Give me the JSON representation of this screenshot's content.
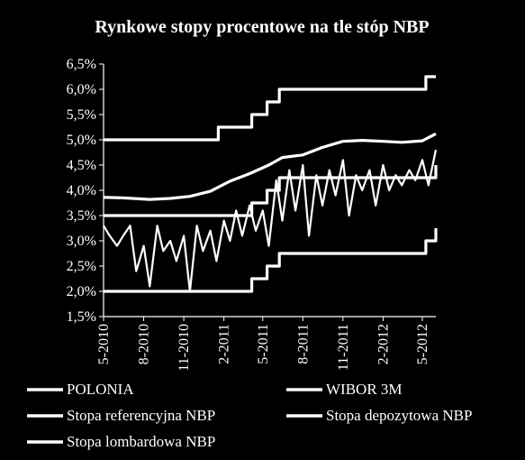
{
  "chart_data": {
    "type": "line",
    "title": "Rynkowe stopy procentowe na tle stóp NBP",
    "xlabel": "",
    "ylabel": "",
    "ylim": [
      0.015,
      0.065
    ],
    "y_ticks": [
      "1,5%",
      "2,0%",
      "2,5%",
      "3,0%",
      "3,5%",
      "4,0%",
      "4,5%",
      "5,0%",
      "5,5%",
      "6,0%",
      "6,5%"
    ],
    "x_range": [
      "2010-05-01",
      "2012-06-01"
    ],
    "x_ticks": [
      {
        "label": "5-2010",
        "date": "2010-05-01"
      },
      {
        "label": "8-2010",
        "date": "2010-08-01"
      },
      {
        "label": "11-2010",
        "date": "2010-11-01"
      },
      {
        "label": "2-2011",
        "date": "2011-02-01"
      },
      {
        "label": "5-2011",
        "date": "2011-05-01"
      },
      {
        "label": "8-2011",
        "date": "2011-08-01"
      },
      {
        "label": "11-2011",
        "date": "2011-11-01"
      },
      {
        "label": "2-2012",
        "date": "2012-02-01"
      },
      {
        "label": "5-2012",
        "date": "2012-05-01"
      }
    ],
    "grid": false,
    "legend_position": "bottom",
    "series": [
      {
        "name": "POLONIA",
        "color": "#ffffff",
        "x": [
          "2010-05-01",
          "2010-05-15",
          "2010-06-01",
          "2010-06-15",
          "2010-07-01",
          "2010-07-15",
          "2010-08-01",
          "2010-08-15",
          "2010-09-01",
          "2010-09-15",
          "2010-10-01",
          "2010-10-15",
          "2010-11-01",
          "2010-11-15",
          "2010-12-01",
          "2010-12-15",
          "2011-01-01",
          "2011-01-15",
          "2011-02-01",
          "2011-02-15",
          "2011-03-01",
          "2011-03-15",
          "2011-04-01",
          "2011-04-15",
          "2011-05-01",
          "2011-05-15",
          "2011-06-01",
          "2011-06-15",
          "2011-07-01",
          "2011-07-15",
          "2011-08-01",
          "2011-08-15",
          "2011-09-01",
          "2011-09-15",
          "2011-10-01",
          "2011-10-15",
          "2011-11-01",
          "2011-11-15",
          "2011-12-01",
          "2011-12-15",
          "2012-01-01",
          "2012-01-15",
          "2012-02-01",
          "2012-02-15",
          "2012-03-01",
          "2012-03-15",
          "2012-04-01",
          "2012-04-15",
          "2012-05-01",
          "2012-05-15",
          "2012-06-01"
        ],
        "values": [
          0.033,
          0.031,
          0.029,
          0.031,
          0.033,
          0.024,
          0.029,
          0.021,
          0.033,
          0.028,
          0.03,
          0.026,
          0.031,
          0.02,
          0.033,
          0.028,
          0.032,
          0.026,
          0.034,
          0.03,
          0.036,
          0.031,
          0.037,
          0.032,
          0.036,
          0.029,
          0.042,
          0.034,
          0.044,
          0.036,
          0.045,
          0.031,
          0.043,
          0.037,
          0.044,
          0.039,
          0.046,
          0.035,
          0.043,
          0.04,
          0.044,
          0.037,
          0.045,
          0.04,
          0.043,
          0.041,
          0.044,
          0.042,
          0.046,
          0.041,
          0.048
        ]
      },
      {
        "name": "WIBOR 3M",
        "color": "#ffffff",
        "x": [
          "2010-05-01",
          "2010-06-15",
          "2010-08-15",
          "2010-10-01",
          "2010-11-15",
          "2011-01-01",
          "2011-02-15",
          "2011-04-01",
          "2011-05-15",
          "2011-06-15",
          "2011-08-01",
          "2011-09-15",
          "2011-11-01",
          "2011-12-15",
          "2012-02-01",
          "2012-03-15",
          "2012-05-01",
          "2012-06-01"
        ],
        "values": [
          0.0386,
          0.0385,
          0.0382,
          0.0384,
          0.0388,
          0.0398,
          0.0418,
          0.0433,
          0.045,
          0.0465,
          0.047,
          0.0485,
          0.0497,
          0.0499,
          0.0497,
          0.0495,
          0.0498,
          0.0512
        ]
      },
      {
        "name": "Stopa referencyjna NBP",
        "color": "#ffffff",
        "x": [
          "2010-05-01",
          "2011-01-19",
          "2011-04-06",
          "2011-05-11",
          "2011-06-08",
          "2012-05-09",
          "2012-06-01"
        ],
        "values": [
          0.035,
          0.035,
          0.0375,
          0.04,
          0.0425,
          0.0425,
          0.045
        ]
      },
      {
        "name": "Stopa depozytowa NBP",
        "color": "#ffffff",
        "x": [
          "2010-05-01",
          "2011-01-19",
          "2011-04-06",
          "2011-05-11",
          "2011-06-08",
          "2012-05-09",
          "2012-06-01"
        ],
        "values": [
          0.02,
          0.02,
          0.0225,
          0.025,
          0.0275,
          0.03,
          0.0325
        ]
      },
      {
        "name": "Stopa lombardowa NBP",
        "color": "#ffffff",
        "x": [
          "2010-05-01",
          "2011-01-19",
          "2011-04-06",
          "2011-05-11",
          "2011-06-08",
          "2012-05-09",
          "2012-06-01"
        ],
        "values": [
          0.05,
          0.0525,
          0.055,
          0.0575,
          0.06,
          0.0625,
          0.0625
        ]
      }
    ]
  }
}
